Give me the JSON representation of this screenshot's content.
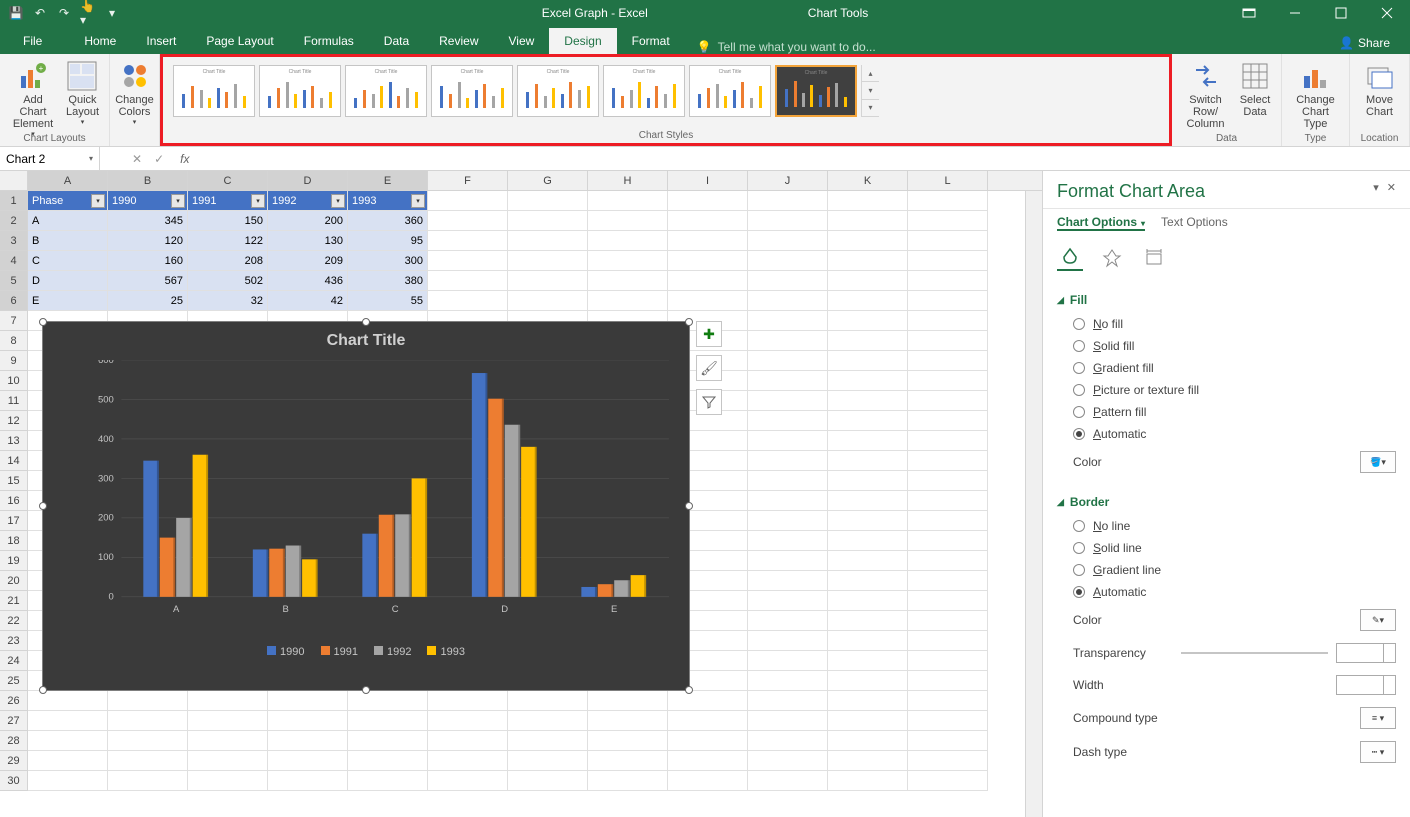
{
  "titlebar": {
    "doc_title": "Excel Graph - Excel",
    "tools_title": "Chart Tools"
  },
  "ribbon": {
    "tabs": [
      "File",
      "Home",
      "Insert",
      "Page Layout",
      "Formulas",
      "Data",
      "Review",
      "View",
      "Design",
      "Format"
    ],
    "active_tab": "Design",
    "tell_me": "Tell me what you want to do...",
    "share": "Share",
    "groups": {
      "chart_layouts": {
        "label": "Chart Layouts",
        "add_chart_element": "Add Chart Element",
        "quick_layout": "Quick Layout"
      },
      "change_colors": "Change Colors",
      "chart_styles": "Chart Styles",
      "data": {
        "label": "Data",
        "switch": "Switch Row/ Column",
        "select": "Select Data"
      },
      "type": {
        "label": "Type",
        "change": "Change Chart Type"
      },
      "location": {
        "label": "Location",
        "move": "Move Chart"
      }
    }
  },
  "name_box": "Chart 2",
  "sheet": {
    "columns": [
      "A",
      "B",
      "C",
      "D",
      "E",
      "F",
      "G",
      "H",
      "I",
      "J",
      "K",
      "L"
    ],
    "header_row": [
      "Phase",
      "1990",
      "1991",
      "1992",
      "1993"
    ],
    "rows": [
      {
        "n": 1
      },
      {
        "n": 2,
        "d": [
          "A",
          "345",
          "150",
          "200",
          "360"
        ]
      },
      {
        "n": 3,
        "d": [
          "B",
          "120",
          "122",
          "130",
          "95"
        ]
      },
      {
        "n": 4,
        "d": [
          "C",
          "160",
          "208",
          "209",
          "300"
        ]
      },
      {
        "n": 5,
        "d": [
          "D",
          "567",
          "502",
          "436",
          "380"
        ]
      },
      {
        "n": 6,
        "d": [
          "E",
          "25",
          "32",
          "42",
          "55"
        ]
      }
    ],
    "row_count": 30,
    "sel_cols": [
      "A",
      "B",
      "C",
      "D",
      "E"
    ],
    "sel_rows": [
      1,
      2,
      3,
      4,
      5,
      6
    ]
  },
  "chart": {
    "type": "bar",
    "title": "Chart Title",
    "background_color": "#3a3a3a",
    "gridline_color": "#5a5a5a",
    "text_color": "#c5c5c5",
    "title_fontsize": 16,
    "axis_fontsize": 10,
    "categories": [
      "A",
      "B",
      "C",
      "D",
      "E"
    ],
    "series": [
      {
        "name": "1990",
        "color": "#4472c4",
        "values": [
          345,
          120,
          160,
          567,
          25
        ]
      },
      {
        "name": "1991",
        "color": "#ed7d31",
        "values": [
          150,
          122,
          208,
          502,
          32
        ]
      },
      {
        "name": "1992",
        "color": "#a5a5a5",
        "values": [
          200,
          130,
          209,
          436,
          42
        ]
      },
      {
        "name": "1993",
        "color": "#ffc000",
        "values": [
          360,
          95,
          300,
          380,
          55
        ]
      }
    ],
    "ylim": [
      0,
      600
    ],
    "ytick_step": 100,
    "legend_position": "bottom",
    "bar_group_gap": 0.4
  },
  "format_pane": {
    "title": "Format Chart Area",
    "tabs": {
      "chart_options": "Chart Options",
      "text_options": "Text Options"
    },
    "fill": {
      "label": "Fill",
      "options": [
        "No fill",
        "Solid fill",
        "Gradient fill",
        "Picture or texture fill",
        "Pattern fill",
        "Automatic"
      ],
      "selected": "Automatic",
      "color_label": "Color"
    },
    "border": {
      "label": "Border",
      "options": [
        "No line",
        "Solid line",
        "Gradient line",
        "Automatic"
      ],
      "selected": "Automatic",
      "color_label": "Color",
      "transparency_label": "Transparency",
      "width_label": "Width",
      "compound_label": "Compound type",
      "dash_label": "Dash type"
    }
  }
}
